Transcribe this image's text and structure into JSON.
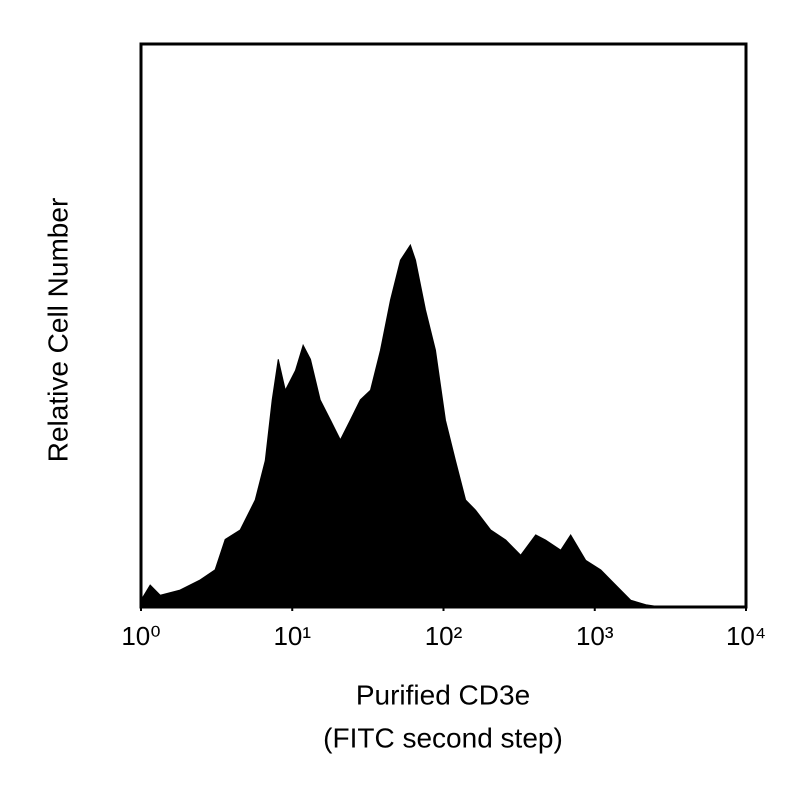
{
  "chart_data": {
    "type": "area",
    "xlabel": [
      "Purified CD3e",
      "(FITC second step)"
    ],
    "ylabel": "Relative Cell Number",
    "xscale": "log",
    "color": "#000000",
    "xlim": [
      1,
      10000
    ],
    "ylim": [
      0,
      100
    ],
    "xticks": [
      {
        "value": 1,
        "label": "10⁰"
      },
      {
        "value": 10,
        "label": "10¹"
      },
      {
        "value": 100,
        "label": "10²"
      },
      {
        "value": 1000,
        "label": "10³"
      },
      {
        "value": 10000,
        "label": "10⁴"
      }
    ],
    "x": [
      1,
      1.15,
      1.34,
      1.81,
      2.46,
      3.09,
      3.6,
      4.53,
      5.69,
      6.63,
      7.37,
      8.08,
      9.0,
      10.5,
      11.8,
      13.2,
      15.3,
      17.9,
      20.8,
      24.2,
      28.2,
      32.9,
      38.3,
      44.6,
      51.9,
      60.4,
      65.3,
      76,
      88.5,
      103,
      120,
      140,
      163,
      205,
      258,
      324,
      407,
      473,
      596,
      693,
      871,
      1096,
      1377,
      1730,
      2177,
      2735
    ],
    "values": [
      1.2,
      3.9,
      2.1,
      3,
      4.8,
      6.6,
      12,
      13.7,
      19,
      26,
      36.8,
      44,
      38.5,
      42,
      46.5,
      44,
      36.8,
      33.2,
      29.7,
      33.2,
      36.8,
      38.5,
      45.6,
      54.5,
      61.6,
      64.3,
      61.6,
      52.8,
      45.6,
      33.2,
      26,
      19,
      17.2,
      13.7,
      11.9,
      9.2,
      12.8,
      11.9,
      10.1,
      12.8,
      8.3,
      6.6,
      3.9,
      1.2,
      0.4,
      0
    ]
  }
}
